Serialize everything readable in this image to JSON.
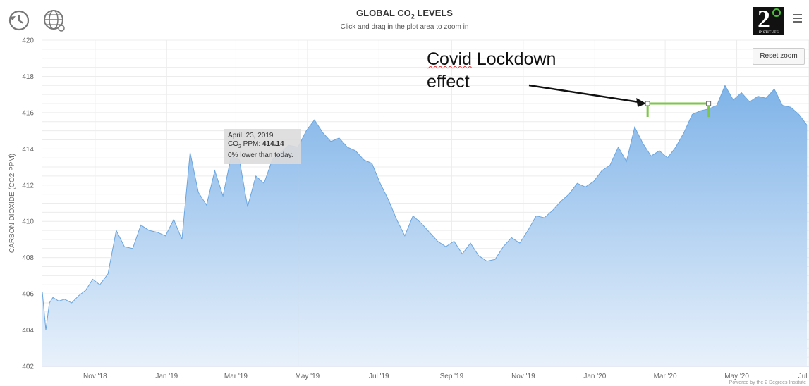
{
  "header": {
    "title_prefix": "GLOBAL CO",
    "title_sub": "2",
    "title_suffix": " LEVELS",
    "subtitle": "Click and drag in the plot area to zoom in",
    "reset_label": "Reset zoom",
    "logo_text": "2",
    "logo_caption": "INSTITUTE",
    "credit": "Powered by the 2 Degrees Institute"
  },
  "icons": {
    "history": "history-icon",
    "globe": "globe-icon",
    "menu": "menu-icon"
  },
  "colors": {
    "area_top": "#7fb3e8",
    "area_bottom": "#e8f1fb",
    "line": "#6aa5df",
    "annotation_bracket": "#7ec64a"
  },
  "tooltip": {
    "date": "April, 23, 2019",
    "label_prefix": "CO",
    "label_sub": "2",
    "label_suffix": " PPM: ",
    "value": "414.14",
    "compare": "0% lower than today."
  },
  "annotation": {
    "line1": "Covid Lockdown",
    "line2": "effect"
  },
  "chart_data": {
    "type": "area",
    "title": "GLOBAL CO2 LEVELS",
    "ylabel": "CARBON DIOXIDE (CO2 PPM)",
    "ylim": [
      402,
      420
    ],
    "yticks": [
      402,
      404,
      406,
      408,
      410,
      412,
      414,
      416,
      418,
      420
    ],
    "ytick_labels": [
      "402",
      "404",
      "406",
      "408",
      "410",
      "412",
      "414",
      "416",
      "418",
      "420"
    ],
    "xlim": [
      "2018-09-17",
      "2020-07-01"
    ],
    "xticks": [
      {
        "label": "Nov '18",
        "date": "2018-11-01"
      },
      {
        "label": "Jan '19",
        "date": "2019-01-01"
      },
      {
        "label": "Mar '19",
        "date": "2019-03-01"
      },
      {
        "label": "May '19",
        "date": "2019-05-01"
      },
      {
        "label": "Jul '19",
        "date": "2019-07-01"
      },
      {
        "label": "Sep '19",
        "date": "2019-09-01"
      },
      {
        "label": "Nov '19",
        "date": "2019-11-01"
      },
      {
        "label": "Jan '20",
        "date": "2020-01-01"
      },
      {
        "label": "Mar '20",
        "date": "2020-03-01"
      },
      {
        "label": "May '20",
        "date": "2020-05-01"
      },
      {
        "label": "Jul '20",
        "date": "2020-07-01"
      }
    ],
    "grid": true,
    "series": [
      {
        "x": [
          "2018-09-17",
          "2018-09-20",
          "2018-09-23",
          "2018-09-26",
          "2018-10-01",
          "2018-10-06",
          "2018-10-12",
          "2018-10-18",
          "2018-10-24",
          "2018-10-30",
          "2018-11-05",
          "2018-11-12",
          "2018-11-19",
          "2018-11-26",
          "2018-12-03",
          "2018-12-10",
          "2018-12-17",
          "2018-12-24",
          "2018-12-31",
          "2019-01-07",
          "2019-01-14",
          "2019-01-21",
          "2019-01-28",
          "2019-02-04",
          "2019-02-11",
          "2019-02-18",
          "2019-02-25",
          "2019-03-04",
          "2019-03-11",
          "2019-03-18",
          "2019-03-25",
          "2019-04-01",
          "2019-04-08",
          "2019-04-15",
          "2019-04-23",
          "2019-04-30",
          "2019-05-07",
          "2019-05-14",
          "2019-05-21",
          "2019-05-28",
          "2019-06-04",
          "2019-06-11",
          "2019-06-18",
          "2019-06-25",
          "2019-07-02",
          "2019-07-09",
          "2019-07-16",
          "2019-07-23",
          "2019-07-30",
          "2019-08-06",
          "2019-08-13",
          "2019-08-20",
          "2019-08-27",
          "2019-09-03",
          "2019-09-10",
          "2019-09-17",
          "2019-09-24",
          "2019-10-01",
          "2019-10-08",
          "2019-10-15",
          "2019-10-22",
          "2019-10-29",
          "2019-11-05",
          "2019-11-12",
          "2019-11-19",
          "2019-11-26",
          "2019-12-03",
          "2019-12-10",
          "2019-12-17",
          "2019-12-24",
          "2019-12-31",
          "2020-01-07",
          "2020-01-14",
          "2020-01-21",
          "2020-01-28",
          "2020-02-04",
          "2020-02-11",
          "2020-02-18",
          "2020-02-25",
          "2020-03-03",
          "2020-03-10",
          "2020-03-17",
          "2020-03-24",
          "2020-03-31",
          "2020-04-07",
          "2020-04-14",
          "2020-04-21",
          "2020-04-28",
          "2020-05-05",
          "2020-05-12",
          "2020-05-19",
          "2020-05-26",
          "2020-06-02",
          "2020-06-09",
          "2020-06-16",
          "2020-06-23",
          "2020-06-30"
        ],
        "y": [
          406.1,
          404.0,
          405.5,
          405.8,
          405.6,
          405.7,
          405.5,
          405.9,
          406.2,
          406.8,
          406.5,
          407.1,
          409.5,
          408.6,
          408.5,
          409.8,
          409.5,
          409.4,
          409.2,
          410.1,
          409.0,
          413.8,
          411.6,
          410.9,
          412.8,
          411.4,
          413.6,
          413.4,
          410.8,
          412.5,
          412.1,
          413.4,
          413.8,
          414.2,
          414.1,
          415.0,
          415.6,
          414.9,
          414.4,
          414.6,
          414.1,
          413.9,
          413.4,
          413.2,
          412.1,
          411.2,
          410.1,
          409.2,
          410.3,
          409.9,
          409.4,
          408.9,
          408.6,
          408.9,
          408.2,
          408.8,
          408.1,
          407.8,
          407.9,
          408.6,
          409.1,
          408.8,
          409.5,
          410.3,
          410.2,
          410.6,
          411.1,
          411.5,
          412.1,
          411.9,
          412.2,
          412.8,
          413.1,
          414.1,
          413.3,
          415.2,
          414.3,
          413.6,
          413.9,
          413.5,
          414.1,
          414.9,
          415.9,
          416.1,
          416.2,
          416.4,
          417.5,
          416.7,
          417.1,
          416.6,
          416.9,
          416.8,
          417.3,
          416.4,
          416.3,
          415.9,
          415.3
        ]
      }
    ],
    "annotations": [
      {
        "text": "Covid Lockdown effect",
        "bracket_x": [
          "2020-02-15",
          "2020-04-07"
        ],
        "bracket_y": 416.5
      }
    ]
  }
}
